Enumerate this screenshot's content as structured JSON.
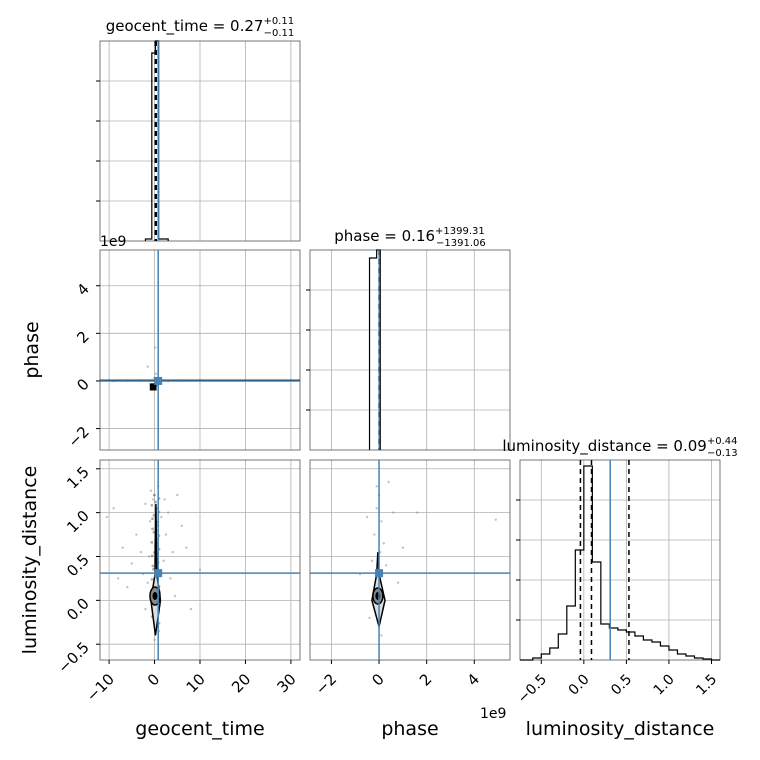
{
  "chart_data": {
    "type": "corner",
    "parameters": [
      "geocent_time",
      "phase",
      "luminosity_distance"
    ],
    "injection_color": "#4682b4",
    "contour_color": "#000000",
    "grid": true,
    "panels": {
      "geocent_time_hist": {
        "title_main": "geocent_time = 0.27",
        "title_sup": "+0.11",
        "title_sub": "−0.11",
        "xlim": [
          -12,
          32
        ],
        "ylim": [
          0,
          1
        ],
        "bins": [
          {
            "x0": -2.0,
            "x1": -0.6,
            "y": 0.01
          },
          {
            "x0": -0.6,
            "x1": 0.2,
            "y": 0.94
          },
          {
            "x0": 0.2,
            "x1": 0.9,
            "y": 1.0
          },
          {
            "x0": 0.9,
            "x1": 3.0,
            "y": 0.01
          }
        ],
        "quantile_lines": [
          0.16,
          0.27,
          0.38
        ],
        "injection": 0.8
      },
      "phase_hist": {
        "title_main": "phase = 0.16",
        "title_sup": "+1399.31",
        "title_sub": "−1391.06",
        "xlim": [
          -2.9,
          5.5
        ],
        "ylim": [
          0,
          1
        ],
        "bins": [
          {
            "x0": -0.4,
            "x1": -0.1,
            "y": 0.96
          },
          {
            "x0": -0.1,
            "x1": 0.05,
            "y": 1.0
          }
        ],
        "quantile_lines": [
          0.0,
          0.02
        ],
        "injection": 0.0
      },
      "luminosity_distance_hist": {
        "title_main": "luminosity_distance = 0.09",
        "title_sup": "+0.44",
        "title_sub": "−0.13",
        "xlim": [
          -0.75,
          1.6
        ],
        "ylim": [
          0,
          1
        ],
        "bins": [
          {
            "x0": -0.75,
            "x1": -0.6,
            "y": 0.0
          },
          {
            "x0": -0.6,
            "x1": -0.5,
            "y": 0.01
          },
          {
            "x0": -0.5,
            "x1": -0.4,
            "y": 0.03
          },
          {
            "x0": -0.4,
            "x1": -0.3,
            "y": 0.06
          },
          {
            "x0": -0.3,
            "x1": -0.2,
            "y": 0.13
          },
          {
            "x0": -0.2,
            "x1": -0.1,
            "y": 0.27
          },
          {
            "x0": -0.1,
            "x1": 0.0,
            "y": 0.55
          },
          {
            "x0": 0.0,
            "x1": 0.1,
            "y": 0.97
          },
          {
            "x0": 0.1,
            "x1": 0.2,
            "y": 0.49
          },
          {
            "x0": 0.2,
            "x1": 0.3,
            "y": 0.18
          },
          {
            "x0": 0.3,
            "x1": 0.4,
            "y": 0.16
          },
          {
            "x0": 0.4,
            "x1": 0.5,
            "y": 0.15
          },
          {
            "x0": 0.5,
            "x1": 0.6,
            "y": 0.14
          },
          {
            "x0": 0.6,
            "x1": 0.7,
            "y": 0.12
          },
          {
            "x0": 0.7,
            "x1": 0.8,
            "y": 0.1
          },
          {
            "x0": 0.8,
            "x1": 0.9,
            "y": 0.09
          },
          {
            "x0": 0.9,
            "x1": 1.0,
            "y": 0.07
          },
          {
            "x0": 1.0,
            "x1": 1.1,
            "y": 0.05
          },
          {
            "x0": 1.1,
            "x1": 1.2,
            "y": 0.03
          },
          {
            "x0": 1.2,
            "x1": 1.3,
            "y": 0.02
          },
          {
            "x0": 1.3,
            "x1": 1.4,
            "y": 0.01
          },
          {
            "x0": 1.4,
            "x1": 1.5,
            "y": 0.005
          },
          {
            "x0": 1.5,
            "x1": 1.6,
            "y": 0.0
          }
        ],
        "quantile_lines": [
          -0.04,
          0.09,
          0.53
        ],
        "injection": 0.31
      },
      "phase_vs_geocent_time": {
        "xlim": [
          -12,
          32
        ],
        "ylim": [
          -2.9,
          5.5
        ],
        "x_injection": 0.8,
        "y_injection": 0.0,
        "offset_text": "1e9",
        "yticks": [
          -2,
          0,
          2,
          4
        ],
        "ytick_labels": [
          "−2",
          "0",
          "2",
          "4"
        ],
        "ylabel": "phase",
        "density_blob": {
          "x": -0.3,
          "y": -0.1,
          "w": 1.5,
          "h": 0.3
        },
        "samples": [
          [
            0.1,
            1.4
          ],
          [
            -1.5,
            0.6
          ],
          [
            0.4,
            -0.2
          ],
          [
            -0.6,
            -0.25
          ],
          [
            -0.1,
            0.12
          ],
          [
            1.5,
            0.05
          ],
          [
            -3,
            0.02
          ],
          [
            3,
            -0.02
          ],
          [
            6,
            0.01
          ],
          [
            -6,
            0.0
          ],
          [
            10,
            0.01
          ],
          [
            -9,
            -0.01
          ],
          [
            0.3,
            0.3
          ],
          [
            -0.4,
            -0.3
          ]
        ]
      },
      "luminosity_distance_vs_geocent_time": {
        "xlim": [
          -12,
          32
        ],
        "ylim": [
          -0.68,
          1.6
        ],
        "x_injection": 0.8,
        "y_injection": 0.31,
        "xticks": [
          -10,
          0,
          10,
          20,
          30
        ],
        "xtick_labels": [
          "−10",
          "0",
          "10",
          "20",
          "30"
        ],
        "yticks": [
          -0.5,
          0.0,
          0.5,
          1.0,
          1.5
        ],
        "ytick_labels": [
          "−0.5",
          "0.0",
          "0.5",
          "1.0",
          "1.5"
        ],
        "xlabel": "geocent_time",
        "ylabel": "luminosity_distance",
        "samples": [
          [
            -10.5,
            0.95
          ],
          [
            -9,
            1.05
          ],
          [
            -7,
            0.6
          ],
          [
            -5,
            0.42
          ],
          [
            -4,
            0.75
          ],
          [
            -3,
            0.55
          ],
          [
            -2.5,
            0.3
          ],
          [
            -2,
            1.1
          ],
          [
            -1.5,
            0.2
          ],
          [
            -1,
            0.9
          ],
          [
            -0.8,
            1.25
          ],
          [
            -0.5,
            0.05
          ],
          [
            -0.3,
            1.15
          ],
          [
            0,
            1.2
          ],
          [
            0.2,
            -0.2
          ],
          [
            0.5,
            0.65
          ],
          [
            0.8,
            1.3
          ],
          [
            1.2,
            0.1
          ],
          [
            1.5,
            0.95
          ],
          [
            2,
            0.45
          ],
          [
            2.5,
            0.75
          ],
          [
            3,
            1.0
          ],
          [
            3.5,
            0.25
          ],
          [
            4,
            0.55
          ],
          [
            5,
            1.2
          ],
          [
            6,
            0.85
          ],
          [
            7,
            0.6
          ],
          [
            8,
            -0.1
          ],
          [
            10,
            0.35
          ],
          [
            -6,
            0.15
          ],
          [
            -8,
            0.25
          ],
          [
            4.5,
            0.05
          ],
          [
            -2,
            -0.1
          ],
          [
            1,
            -0.35
          ],
          [
            0,
            -0.45
          ],
          [
            2.2,
            1.15
          ],
          [
            -1.2,
            0.5
          ],
          [
            0.6,
            0.8
          ]
        ]
      },
      "luminosity_distance_vs_phase": {
        "xlim": [
          -2.9,
          5.5
        ],
        "ylim": [
          -0.68,
          1.6
        ],
        "x_injection": 0.0,
        "y_injection": 0.31,
        "xticks": [
          -2,
          0,
          2,
          4
        ],
        "xtick_labels": [
          "−2",
          "0",
          "2",
          "4"
        ],
        "xlabel": "phase",
        "offset_text": "1e9",
        "samples": [
          [
            0.0,
            1.2
          ],
          [
            -0.1,
            1.05
          ],
          [
            0.1,
            0.9
          ],
          [
            -0.2,
            0.75
          ],
          [
            0.2,
            0.65
          ],
          [
            0.05,
            0.55
          ],
          [
            -0.3,
            0.45
          ],
          [
            0.3,
            0.4
          ],
          [
            -0.5,
            0.95
          ],
          [
            0.6,
            1.0
          ],
          [
            1.0,
            0.6
          ],
          [
            -0.8,
            0.3
          ],
          [
            1.6,
            1.0
          ],
          [
            0.8,
            0.2
          ],
          [
            -0.4,
            -0.2
          ],
          [
            0.1,
            -0.4
          ],
          [
            0.4,
            1.35
          ],
          [
            4.9,
            0.92
          ],
          [
            -0.1,
            1.3
          ]
        ]
      },
      "luminosity_distance_hist_axis": {
        "xticks": [
          -0.5,
          0.0,
          0.5,
          1.0,
          1.5
        ],
        "xtick_labels": [
          "−0.5",
          "0.0",
          "0.5",
          "1.0",
          "1.5"
        ],
        "xlabel": "luminosity_distance"
      }
    }
  }
}
